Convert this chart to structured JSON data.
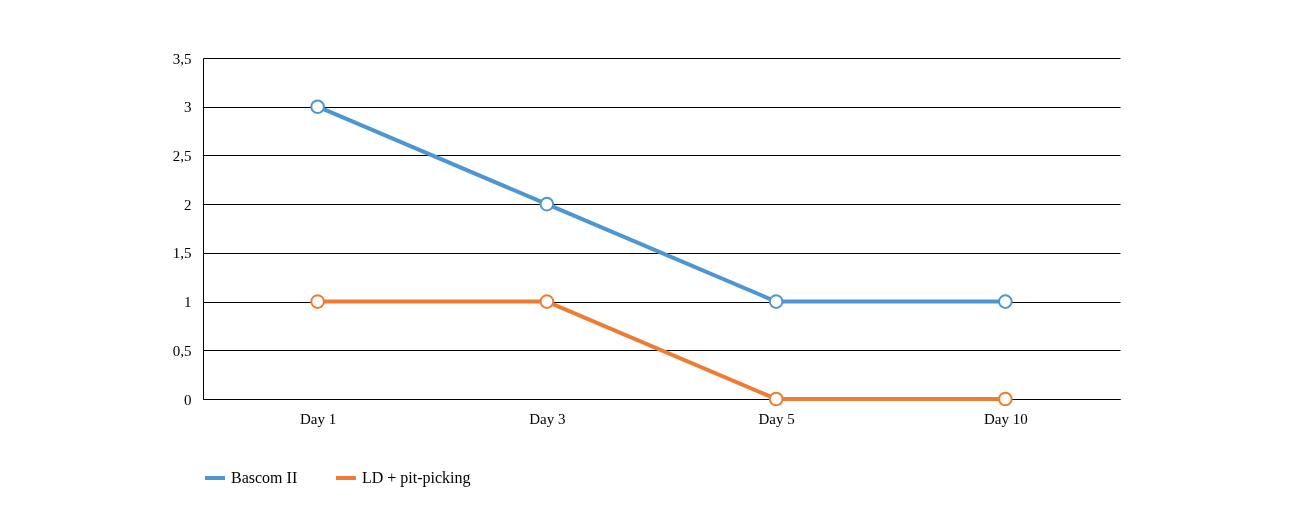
{
  "chart_data": {
    "type": "line",
    "categories": [
      "Day 1",
      "Day 3",
      "Day 5",
      "Day 10"
    ],
    "series": [
      {
        "name": "Bascom II",
        "color": "#4e96d1",
        "values": [
          3,
          2,
          1,
          1
        ]
      },
      {
        "name": "LD + pit-picking",
        "color": "#ee7d33",
        "values": [
          1,
          1,
          0,
          0
        ]
      }
    ],
    "ylim": [
      0,
      3.5
    ],
    "yticks": [
      0,
      {
        "value": 0.5,
        "label": "0,5"
      },
      1,
      {
        "value": 1.5,
        "label": "1,5"
      },
      2,
      {
        "value": 2.5,
        "label": "2,5"
      },
      3,
      {
        "value": 3.5,
        "label": "3,5"
      }
    ],
    "grid": "y",
    "legend": "bottom",
    "marker": "circle",
    "line_style": "solid"
  }
}
